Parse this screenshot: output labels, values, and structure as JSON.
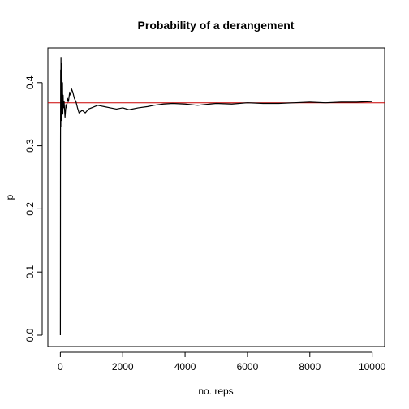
{
  "chart_data": {
    "type": "line",
    "title": "Probability of a derangement",
    "xlabel": "no. reps",
    "ylabel": "p",
    "xlim": [
      -400,
      10400
    ],
    "ylim": [
      -0.018,
      0.455
    ],
    "xticks": [
      0,
      2000,
      4000,
      6000,
      8000,
      10000
    ],
    "yticks": [
      0.0,
      0.1,
      0.2,
      0.3,
      0.4
    ],
    "grid": false,
    "legend": "none",
    "reference_line": {
      "y": 0.3679,
      "color": "#cc0000"
    },
    "series": [
      {
        "color": "#000000",
        "x": [
          1,
          5,
          10,
          15,
          20,
          30,
          40,
          50,
          60,
          70,
          80,
          90,
          100,
          120,
          150,
          180,
          200,
          230,
          260,
          300,
          330,
          360,
          400,
          450,
          500,
          550,
          600,
          700,
          800,
          900,
          1000,
          1200,
          1400,
          1600,
          1800,
          2000,
          2200,
          2500,
          2800,
          3000,
          3300,
          3600,
          4000,
          4400,
          4800,
          5000,
          5500,
          6000,
          6500,
          7000,
          7500,
          8000,
          8500,
          9000,
          9500,
          10000
        ],
        "y": [
          0.0,
          0.3,
          0.42,
          0.33,
          0.44,
          0.38,
          0.34,
          0.43,
          0.36,
          0.4,
          0.35,
          0.38,
          0.36,
          0.37,
          0.345,
          0.365,
          0.36,
          0.375,
          0.37,
          0.385,
          0.38,
          0.39,
          0.385,
          0.375,
          0.37,
          0.36,
          0.352,
          0.356,
          0.352,
          0.358,
          0.36,
          0.364,
          0.362,
          0.36,
          0.358,
          0.36,
          0.357,
          0.36,
          0.362,
          0.364,
          0.366,
          0.367,
          0.366,
          0.364,
          0.366,
          0.367,
          0.366,
          0.368,
          0.367,
          0.367,
          0.368,
          0.369,
          0.368,
          0.369,
          0.369,
          0.37
        ]
      }
    ]
  }
}
